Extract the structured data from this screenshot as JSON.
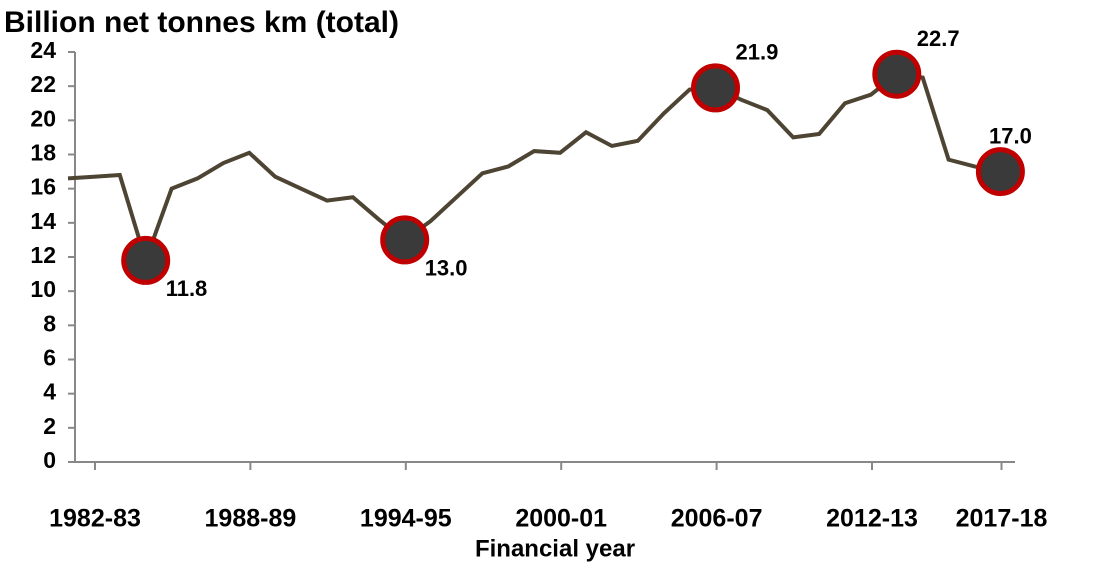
{
  "chart_data": {
    "type": "line",
    "title": "Billion net tonnes km (total)",
    "x_label": "Financial year",
    "categories": [
      "1982-83",
      null,
      null,
      null,
      null,
      null,
      "1988-89",
      null,
      null,
      null,
      null,
      null,
      "1994-95",
      null,
      null,
      null,
      null,
      null,
      "2000-01",
      null,
      null,
      null,
      null,
      null,
      "2006-07",
      null,
      null,
      null,
      null,
      null,
      "2012-13",
      null,
      null,
      null,
      null,
      "2017-18",
      null
    ],
    "series": [
      {
        "name": "Billion net tonnes km",
        "color": "#4d4433",
        "values": [
          16.6,
          16.7,
          16.8,
          11.8,
          16.0,
          16.6,
          17.5,
          18.1,
          16.7,
          16.0,
          15.3,
          15.5,
          14.2,
          13.0,
          14.1,
          15.5,
          16.9,
          17.3,
          18.2,
          18.1,
          19.3,
          18.5,
          18.8,
          20.4,
          21.8,
          21.9,
          21.2,
          20.6,
          19.0,
          19.2,
          21.0,
          21.5,
          22.7,
          22.5,
          17.7,
          17.3,
          17.0
        ],
        "value_labels": [
          null,
          null,
          null,
          "11.8",
          null,
          null,
          null,
          null,
          null,
          null,
          null,
          null,
          null,
          "13.0",
          null,
          null,
          null,
          null,
          null,
          null,
          null,
          null,
          null,
          null,
          null,
          "21.9",
          null,
          null,
          null,
          null,
          null,
          null,
          "22.7",
          null,
          null,
          null,
          "17.0"
        ]
      }
    ],
    "marker_color": "#3a3a3a",
    "marker_edge_color": "#c00000",
    "ylim": [
      0,
      24
    ],
    "yticks": [
      0,
      2,
      4,
      6,
      8,
      10,
      12,
      14,
      16,
      18,
      20,
      22,
      24
    ]
  }
}
